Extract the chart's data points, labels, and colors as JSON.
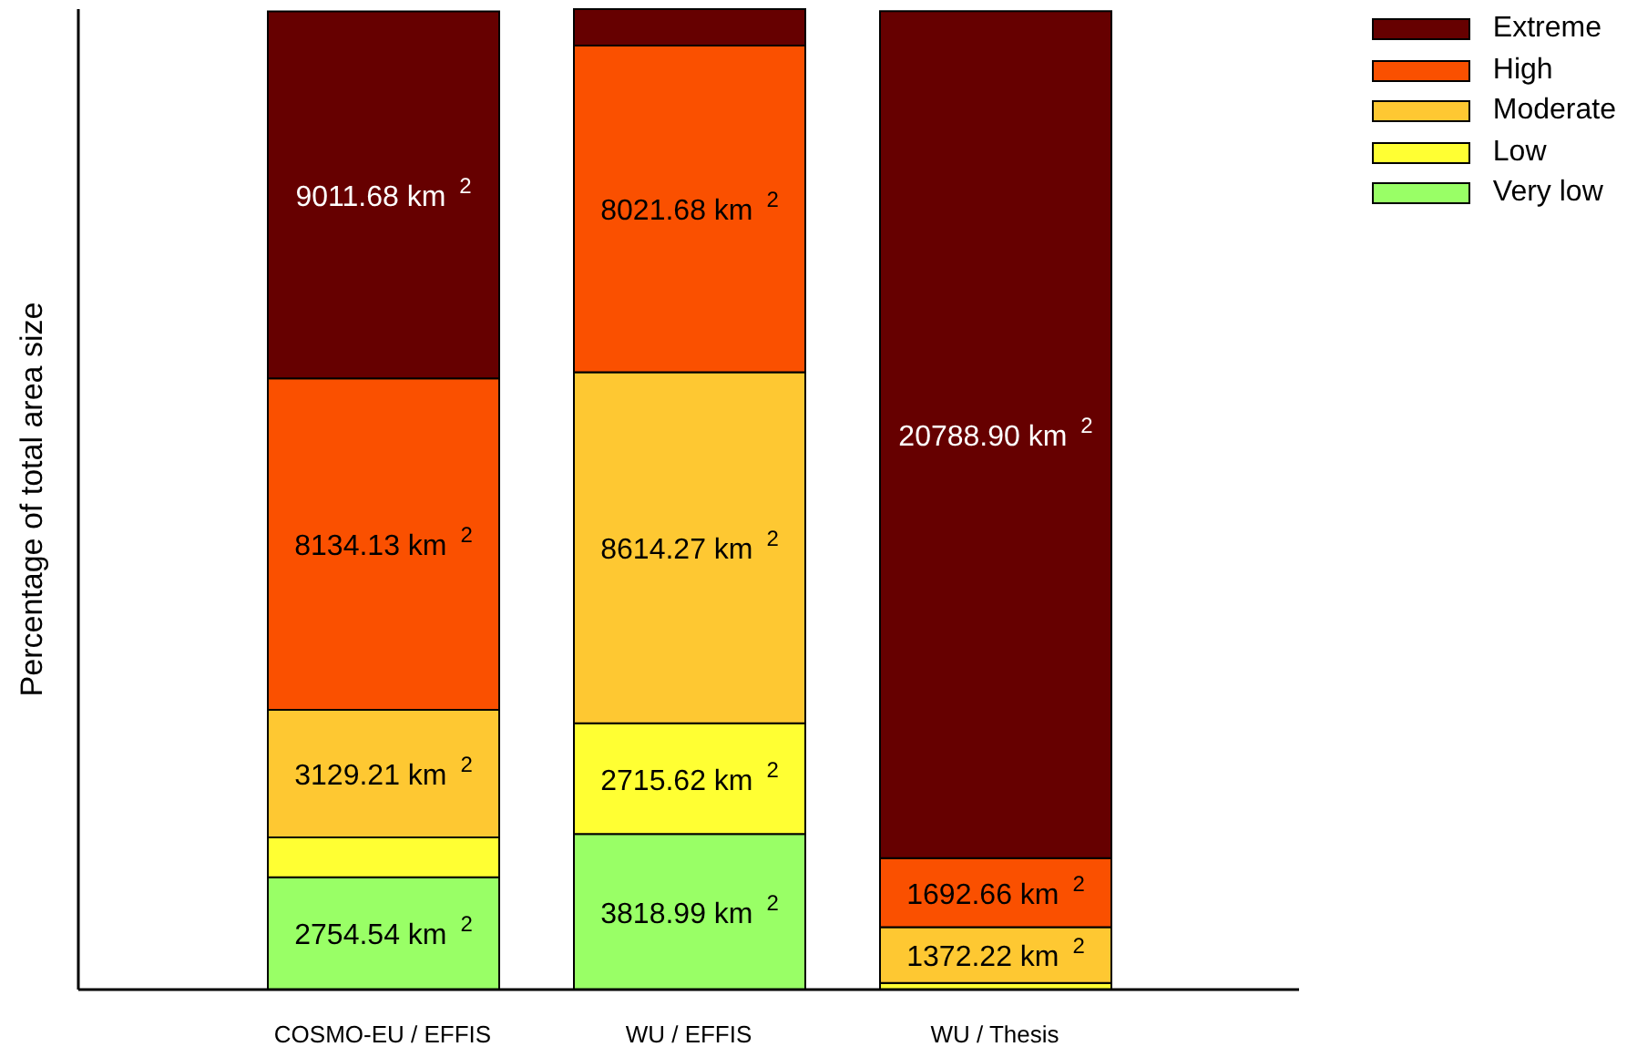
{
  "chart_data": {
    "type": "bar",
    "stacked": true,
    "ylabel": "Percentage of total area size",
    "categories": [
      "COSMO-EU / EFFIS",
      "WU / EFFIS",
      "WU / Thesis"
    ],
    "series": [
      {
        "name": "Very low",
        "color": "#99ff66",
        "values": [
          2754.54,
          3818.99,
          null
        ],
        "value_labels": [
          "2754.54 km $^{2}$",
          "3818.99 km $^{2}$",
          null
        ]
      },
      {
        "name": "Low",
        "color": "#ffff33",
        "values": [
          980,
          2715.62,
          160
        ],
        "value_labels": [
          null,
          "2715.62 km $^{2}$",
          null
        ]
      },
      {
        "name": "Moderate",
        "color": "#fec832",
        "values": [
          3129.21,
          8614.27,
          1372.22
        ],
        "value_labels": [
          "3129.21 km $^{2}$",
          "8614.27 km $^{2}$",
          "1372.22 km $^{2}$"
        ]
      },
      {
        "name": "High",
        "color": "#fa5000",
        "values": [
          8134.13,
          8021.68,
          1692.66
        ],
        "value_labels": [
          "8134.13 km $^{2}$",
          "8021.68 km $^{2}$",
          "1692.66 km $^{2}$"
        ]
      },
      {
        "name": "Extreme",
        "color": "#660000",
        "values": [
          9011.68,
          893,
          20788.9
        ],
        "value_labels": [
          "9011.68 km $^{2}$",
          null,
          "20788.90 km $^{2}$"
        ]
      }
    ],
    "legend": "top right",
    "grid": false
  }
}
